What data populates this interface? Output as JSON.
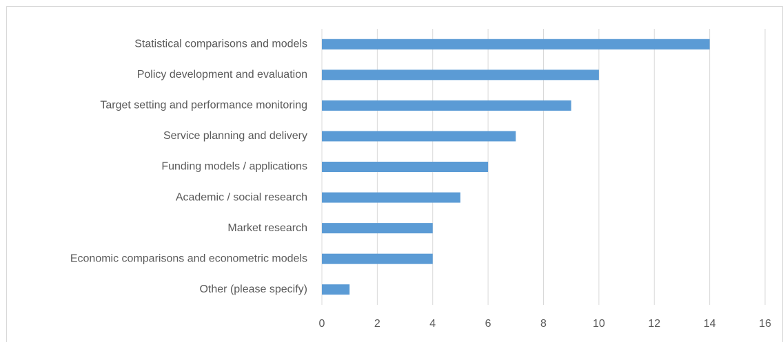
{
  "chart_data": {
    "type": "bar",
    "orientation": "horizontal",
    "categories": [
      "Statistical comparisons and models",
      "Policy development and evaluation",
      "Target setting and performance monitoring",
      "Service planning and delivery",
      "Funding models / applications",
      "Academic / social research",
      "Market research",
      "Economic comparisons and econometric models",
      "Other (please specify)"
    ],
    "values": [
      14,
      10,
      9,
      7,
      6,
      5,
      4,
      4,
      1
    ],
    "color": "#5b9bd5",
    "xlim": [
      0,
      16
    ],
    "xticks": [
      0,
      2,
      4,
      6,
      8,
      10,
      12,
      14,
      16
    ],
    "grid": true
  }
}
